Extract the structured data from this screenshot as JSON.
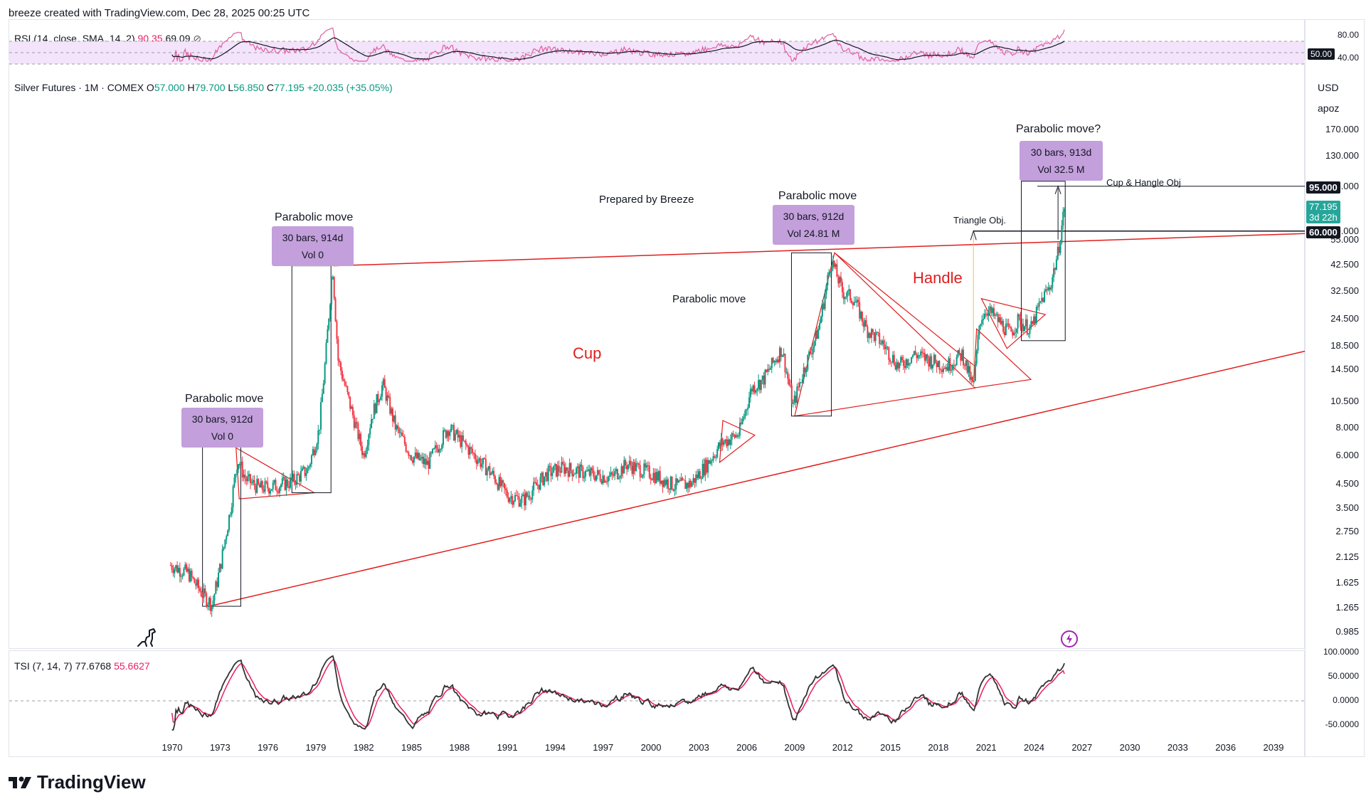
{
  "header": {
    "credit": "breeze created with TradingView.com, Dec 28, 2025 00:25 UTC"
  },
  "rsi": {
    "title": "RSI (14, close, SMA, 14, 2)",
    "value1": "90.35",
    "value2": "69.09",
    "axis": [
      "80.00",
      "50.00",
      "40.00"
    ],
    "color_line": "#e05fa0",
    "color_ma": "#131722",
    "band_color": "#f3e3fb"
  },
  "main": {
    "symbol": "Silver Futures · 1M · COMEX",
    "ohlc": {
      "o_label": "O",
      "o": "57.000",
      "h_label": "H",
      "h": "79.700",
      "l_label": "L",
      "l": "56.850",
      "c_label": "C",
      "c": "77.195",
      "change": "+20.035 (+35.05%)"
    },
    "currency": "USD",
    "scale_mode": "apoz",
    "price_axis": [
      "170.000",
      "130.000",
      "95.000",
      "60.000",
      "55.000",
      "42.500",
      "32.500",
      "24.500",
      "18.500",
      "14.500",
      "10.500",
      "8.000",
      "6.000",
      "4.500",
      "3.500",
      "2.750",
      "2.125",
      "1.625",
      "1.265",
      "0.985"
    ],
    "last_price_tag": {
      "price": "77.195",
      "countdown": "3d 22h",
      "color": "#26a69a"
    },
    "level_tags": [
      "95.000",
      "60.000"
    ],
    "prepared_by": "Prepared by Breeze",
    "annotations": {
      "cup": "Cup",
      "handle": "Handle",
      "parabolic_mid": "Parabolic move",
      "triangle_obj": "Triangle Obj.",
      "cup_handle_obj": "Cup & Hangle Obj"
    },
    "boxes": [
      {
        "title": "Parabolic move",
        "line1": "30 bars, 912d",
        "line2": "Vol 0"
      },
      {
        "title": "Parabolic move",
        "line1": "30 bars, 914d",
        "line2": "Vol 0"
      },
      {
        "title": "Parabolic move",
        "line1": "30 bars, 912d",
        "line2": "Vol 24.81 M"
      },
      {
        "title": "Parabolic move?",
        "line1": "30 bars, 913d",
        "line2": "Vol 32.5 M"
      }
    ]
  },
  "tsi": {
    "title": "TSI (7, 14, 7)",
    "value1": "77.6768",
    "value2": "55.6627",
    "axis": [
      "100.0000",
      "50.0000",
      "0.0000",
      "-50.0000"
    ],
    "color_line": "#333333",
    "color_signal": "#e91e63"
  },
  "x_axis": [
    "1970",
    "1973",
    "1976",
    "1979",
    "1982",
    "1985",
    "1988",
    "1991",
    "1994",
    "1997",
    "2000",
    "2003",
    "2006",
    "2009",
    "2012",
    "2015",
    "2018",
    "2021",
    "2024",
    "2027",
    "2030",
    "2033",
    "2036",
    "2039"
  ],
  "footer": {
    "brand": "TradingView"
  },
  "chart_data": {
    "type": "line",
    "title": "Silver Futures · 1M · COMEX",
    "xlabel": "",
    "ylabel": "",
    "log_scale": true,
    "ylim": [
      0.9,
      200
    ],
    "grid": false,
    "series": [
      {
        "name": "Silver Futures",
        "x": [
          1969.9,
          1971.0,
          1971.9,
          1972.5,
          1973.0,
          1973.6,
          1974.1,
          1974.6,
          1975.5,
          1976.5,
          1977.5,
          1978.5,
          1979.2,
          1979.6,
          1980.05,
          1980.4,
          1981.0,
          1982.0,
          1982.5,
          1983.2,
          1984.0,
          1985.0,
          1986.0,
          1987.3,
          1988.5,
          1990.0,
          1991.0,
          1992.0,
          1993.5,
          1994.5,
          1996.0,
          1997.5,
          1998.5,
          2000.0,
          2001.5,
          2002.5,
          2003.5,
          2004.4,
          2005.5,
          2006.3,
          2007.0,
          2008.2,
          2008.9,
          2009.5,
          2010.5,
          2011.3,
          2012.0,
          2012.7,
          2013.5,
          2014.5,
          2015.5,
          2016.5,
          2017.5,
          2018.5,
          2019.5,
          2020.2,
          2020.6,
          2021.0,
          2021.5,
          2022.5,
          2023.0,
          2023.8,
          2024.5,
          2025.0,
          2025.5,
          2025.9
        ],
        "values": [
          1.95,
          1.8,
          1.45,
          1.3,
          1.9,
          3.3,
          5.8,
          4.7,
          4.3,
          4.4,
          4.6,
          5.2,
          7.8,
          16,
          42,
          16,
          11,
          6.0,
          9.0,
          12.5,
          8.0,
          6.0,
          5.5,
          8.0,
          6.5,
          5.0,
          4.0,
          3.8,
          5.0,
          5.3,
          5.0,
          4.8,
          5.5,
          5.0,
          4.4,
          4.5,
          5.5,
          6.8,
          7.5,
          12,
          13,
          18,
          10,
          14,
          22,
          45,
          32,
          30,
          22,
          19,
          15,
          17,
          16,
          15,
          17,
          12,
          24,
          27,
          25,
          21,
          24,
          22,
          30,
          34,
          48,
          77.195
        ]
      }
    ],
    "rsi_series": {
      "name": "RSI",
      "last": 90.35,
      "ma_last": 69.09,
      "bands": [
        70,
        50,
        30
      ]
    },
    "tsi_series": {
      "name": "TSI",
      "last": 77.6768,
      "signal_last": 55.6627
    }
  }
}
